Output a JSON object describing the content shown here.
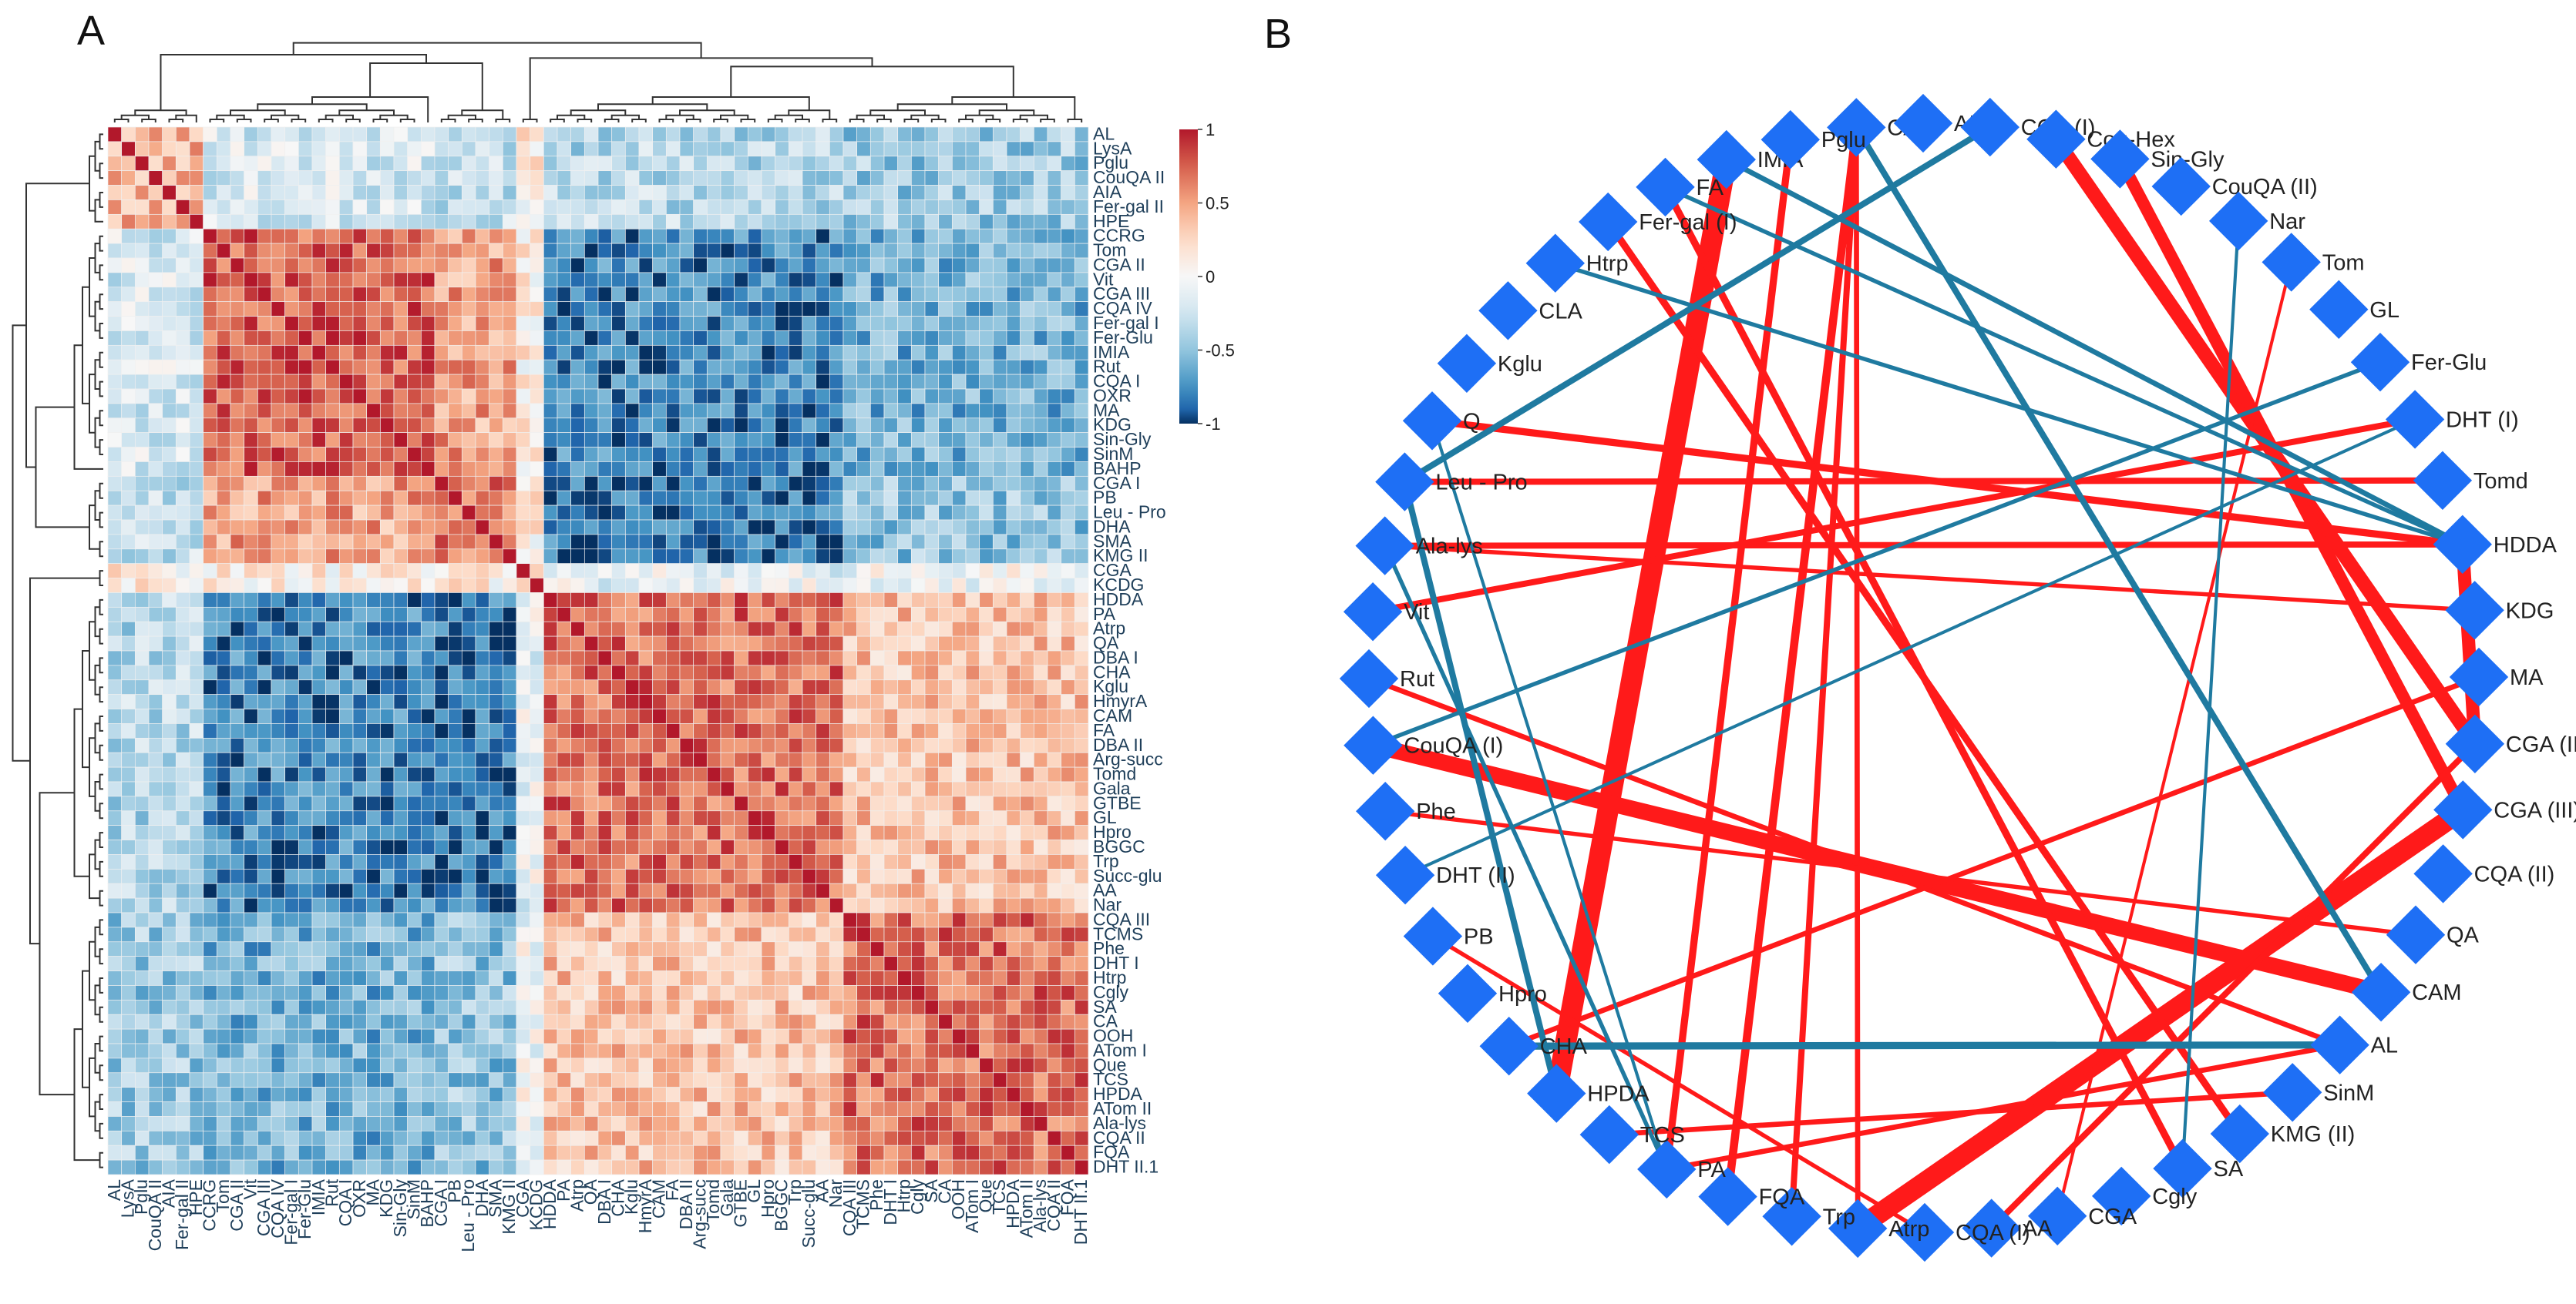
{
  "panels": {
    "a": "A",
    "b": "B"
  },
  "colors": {
    "positive": "#b2182b",
    "negative": "#053061",
    "neutral": "#f7f7f7",
    "node": "#1e6ff5",
    "edge_pos": "#ff1a1a",
    "edge_neg": "#1f7aa0"
  },
  "chart_data": [
    {
      "type": "heatmap",
      "title": "",
      "value_range": [
        -1,
        1
      ],
      "colorbar_ticks": [
        "1",
        "0.5",
        "0",
        "-0.5",
        "-1"
      ],
      "row_labels": [
        "AL",
        "LysA",
        "Pglu",
        "CouQA II",
        "AIA",
        "Fer-gal II",
        "HPE",
        "CCRG",
        "Tom",
        "CGA II",
        "Vit",
        "CGA III",
        "CQA IV",
        "Fer-gal I",
        "Fer-Glu",
        "IMIA",
        "Rut",
        "CQA I",
        "OXR",
        "MA",
        "KDG",
        "Sin-Gly",
        "SinM",
        "BAHP",
        "CGA I",
        "PB",
        "Leu - Pro",
        "DHA",
        "SMA",
        "KMG II",
        "CGA",
        "KCDG",
        "HDDA",
        "PA",
        "Atrp",
        "QA",
        "DBA I",
        "CHA",
        "Kglu",
        "HmyrA",
        "CAM",
        "FA",
        "DBA II",
        "Arg-succ",
        "Tomd",
        "Gala",
        "GTBE",
        "GL",
        "Hpro",
        "BGGC",
        "Trp",
        "Succ-glu",
        "AA",
        "Nar",
        "CQA III",
        "TCMS",
        "Phe",
        "DHT I",
        "Htrp",
        "Cgly",
        "SA",
        "CA",
        "OOH",
        "ATom I",
        "Que",
        "TCS",
        "HPDA",
        "ATom II",
        "Ala-lys",
        "CQA II",
        "FQA",
        "DHT II.1"
      ],
      "col_labels": [
        "AL",
        "LysA",
        "Pglu",
        "CouQA II",
        "AIA",
        "Fer-gal II",
        "HPE",
        "CCRG",
        "Tom",
        "CGA II",
        "Vit",
        "CGA III",
        "CQA IV",
        "Fer-gal I",
        "Fer-Glu",
        "IMIA",
        "Rut",
        "CQA I",
        "OXR",
        "MA",
        "KDG",
        "Sin-Gly",
        "SinM",
        "BAHP",
        "CGA I",
        "PB",
        "Leu - Pro",
        "DHA",
        "SMA",
        "KMG II",
        "CGA",
        "KCDG",
        "HDDA",
        "PA",
        "Atrp",
        "QA",
        "DBA I",
        "CHA",
        "Kglu",
        "HmyrA",
        "CAM",
        "FA",
        "DBA II",
        "Arg-succ",
        "Tomd",
        "Gala",
        "GTBE",
        "GL",
        "Hpro",
        "BGGC",
        "Trp",
        "Succ-glu",
        "AA",
        "Nar",
        "CQA III",
        "TCMS",
        "Phe",
        "DHT I",
        "Htrp",
        "Cgly",
        "SA",
        "CA",
        "OOH",
        "ATom I",
        "Que",
        "TCS",
        "HPDA",
        "ATom II",
        "Ala-lys",
        "CQA II",
        "FQA",
        "DHT II.1"
      ],
      "cluster_groups": [
        7,
        24,
        30,
        32,
        54,
        72
      ],
      "block_correlation": [
        [
          0.45,
          -0.2,
          -0.3,
          0.1,
          -0.35,
          -0.45
        ],
        [
          -0.2,
          0.75,
          0.5,
          0.1,
          -0.8,
          -0.6
        ],
        [
          -0.3,
          0.5,
          0.65,
          0.1,
          -0.85,
          -0.5
        ],
        [
          0.1,
          0.1,
          0.1,
          0.2,
          -0.1,
          -0.05
        ],
        [
          -0.35,
          -0.8,
          -0.85,
          -0.1,
          0.7,
          0.35
        ],
        [
          -0.45,
          -0.6,
          -0.5,
          -0.05,
          0.35,
          0.7
        ]
      ]
    },
    {
      "type": "network",
      "title": "",
      "nodes": [
        "CA",
        "AIA",
        "CGA (I)",
        "Cou-Hex",
        "Sin-Gly",
        "CouQA (II)",
        "Nar",
        "Tom",
        "GL",
        "Fer-Glu",
        "DHT (I)",
        "Tomd",
        "HDDA",
        "KDG",
        "MA",
        "CGA (II)",
        "CGA (III)",
        "CQA (II)",
        "QA",
        "CAM",
        "AL",
        "SinM",
        "KMG (II)",
        "SA",
        "Cgly",
        "CGA",
        "AA",
        "CQA (I)",
        "Atrp",
        "Trp",
        "FQA",
        "PA",
        "TCS",
        "HPDA",
        "CHA",
        "Hpro",
        "PB",
        "DHT (II)",
        "Phe",
        "CouQA (I)",
        "Rut",
        "Vit",
        "Ala-lys",
        "Leu - Pro",
        "Q",
        "Kglu",
        "CLA",
        "Htrp",
        "Fer-gal (I)",
        "FA",
        "IMIA",
        "Pglu"
      ],
      "edges": [
        {
          "source": "IMIA",
          "target": "HPDA",
          "weight": 1.0,
          "sign": "positive"
        },
        {
          "source": "Atrp",
          "target": "CGA (III)",
          "weight": 0.95,
          "sign": "positive"
        },
        {
          "source": "CouQA (I)",
          "target": "CAM",
          "weight": 0.75,
          "sign": "positive"
        },
        {
          "source": "Cou-Hex",
          "target": "CGA (II)",
          "weight": 0.65,
          "sign": "positive"
        },
        {
          "source": "Sin-Gly",
          "target": "CGA (III)",
          "weight": 0.55,
          "sign": "positive"
        },
        {
          "source": "HDDA",
          "target": "CGA (II)",
          "weight": 0.6,
          "sign": "positive"
        },
        {
          "source": "CA",
          "target": "FQA",
          "weight": 0.35,
          "sign": "positive"
        },
        {
          "source": "CA",
          "target": "Trp",
          "weight": 0.25,
          "sign": "positive"
        },
        {
          "source": "CA",
          "target": "Atrp",
          "weight": 0.2,
          "sign": "positive"
        },
        {
          "source": "Pglu",
          "target": "PA",
          "weight": 0.3,
          "sign": "positive"
        },
        {
          "source": "FA",
          "target": "SA",
          "weight": 0.3,
          "sign": "positive"
        },
        {
          "source": "Fer-gal (I)",
          "target": "KMG (II)",
          "weight": 0.3,
          "sign": "positive"
        },
        {
          "source": "Q",
          "target": "HDDA",
          "weight": 0.3,
          "sign": "positive"
        },
        {
          "source": "Ala-lys",
          "target": "HDDA",
          "weight": 0.25,
          "sign": "positive"
        },
        {
          "source": "DHT (I)",
          "target": "Vit",
          "weight": 0.25,
          "sign": "positive"
        },
        {
          "source": "Tomd",
          "target": "Leu - Pro",
          "weight": 0.25,
          "sign": "positive"
        },
        {
          "source": "Rut",
          "target": "AL",
          "weight": 0.2,
          "sign": "positive"
        },
        {
          "source": "Phe",
          "target": "QA",
          "weight": 0.15,
          "sign": "positive"
        },
        {
          "source": "AL",
          "target": "PA",
          "weight": 0.2,
          "sign": "positive"
        },
        {
          "source": "Tom",
          "target": "CGA",
          "weight": 0.1,
          "sign": "positive"
        },
        {
          "source": "KDG",
          "target": "Ala-lys",
          "weight": 0.15,
          "sign": "positive"
        },
        {
          "source": "MA",
          "target": "CHA",
          "weight": 0.2,
          "sign": "positive"
        },
        {
          "source": "SinM",
          "target": "TCS",
          "weight": 0.2,
          "sign": "positive"
        },
        {
          "source": "CGA (II)",
          "target": "AA",
          "weight": 0.25,
          "sign": "positive"
        },
        {
          "source": "PB",
          "target": "CQA (I)",
          "weight": 0.15,
          "sign": "positive"
        },
        {
          "source": "CA",
          "target": "CAM",
          "weight": 0.25,
          "sign": "negative"
        },
        {
          "source": "CGA (I)",
          "target": "Leu - Pro",
          "weight": 0.25,
          "sign": "negative"
        },
        {
          "source": "IMIA",
          "target": "HDDA",
          "weight": 0.2,
          "sign": "negative"
        },
        {
          "source": "FA",
          "target": "HDDA",
          "weight": 0.15,
          "sign": "negative"
        },
        {
          "source": "Htrp",
          "target": "HDDA",
          "weight": 0.15,
          "sign": "negative"
        },
        {
          "source": "CHA",
          "target": "AL",
          "weight": 0.3,
          "sign": "negative"
        },
        {
          "source": "Leu - Pro",
          "target": "HPDA",
          "weight": 0.25,
          "sign": "negative"
        },
        {
          "source": "CouQA (I)",
          "target": "Fer-Glu",
          "weight": 0.15,
          "sign": "negative"
        },
        {
          "source": "Nar",
          "target": "SA",
          "weight": 0.1,
          "sign": "negative"
        },
        {
          "source": "Ala-lys",
          "target": "PA",
          "weight": 0.15,
          "sign": "negative"
        },
        {
          "source": "Q",
          "target": "PA",
          "weight": 0.1,
          "sign": "negative"
        },
        {
          "source": "DHT (II)",
          "target": "DHT (I)",
          "weight": 0.1,
          "sign": "negative"
        }
      ]
    }
  ]
}
